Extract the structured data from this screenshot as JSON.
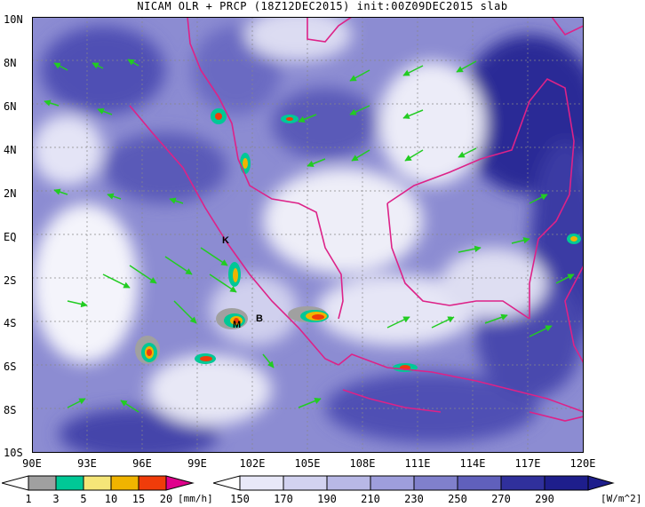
{
  "title": "NICAM OLR + PRCP (18Z12DEC2015) init:00Z09DEC2015 slab",
  "lat_labels": [
    "10N",
    "8N",
    "6N",
    "4N",
    "2N",
    "EQ",
    "2S",
    "4S",
    "6S",
    "8S",
    "10S"
  ],
  "lon_labels": [
    "90E",
    "93E",
    "96E",
    "99E",
    "102E",
    "105E",
    "108E",
    "111E",
    "114E",
    "117E",
    "120E"
  ],
  "map_labels": {
    "k": "K",
    "m": "M",
    "b": "B"
  },
  "precip_legend": {
    "ticks": [
      "1",
      "3",
      "5",
      "10",
      "15",
      "20"
    ],
    "unit": "[mm/h]",
    "colors": [
      "#a0a0a0",
      "#00c896",
      "#f5e678",
      "#f0b400",
      "#f03c0a",
      "#e0008c"
    ]
  },
  "olr_legend": {
    "ticks": [
      "150",
      "170",
      "190",
      "210",
      "230",
      "250",
      "270",
      "290"
    ],
    "unit": "[W/m^2]",
    "colors": [
      "#ffffff",
      "#e8e8f8",
      "#d2d2f0",
      "#b8b8e6",
      "#9e9edc",
      "#8080cc",
      "#6060bc",
      "#4545ac",
      "#30309c",
      "#1e1e8c"
    ]
  },
  "arrow_color": "#22cc22",
  "coast_color": "#dd2288"
}
